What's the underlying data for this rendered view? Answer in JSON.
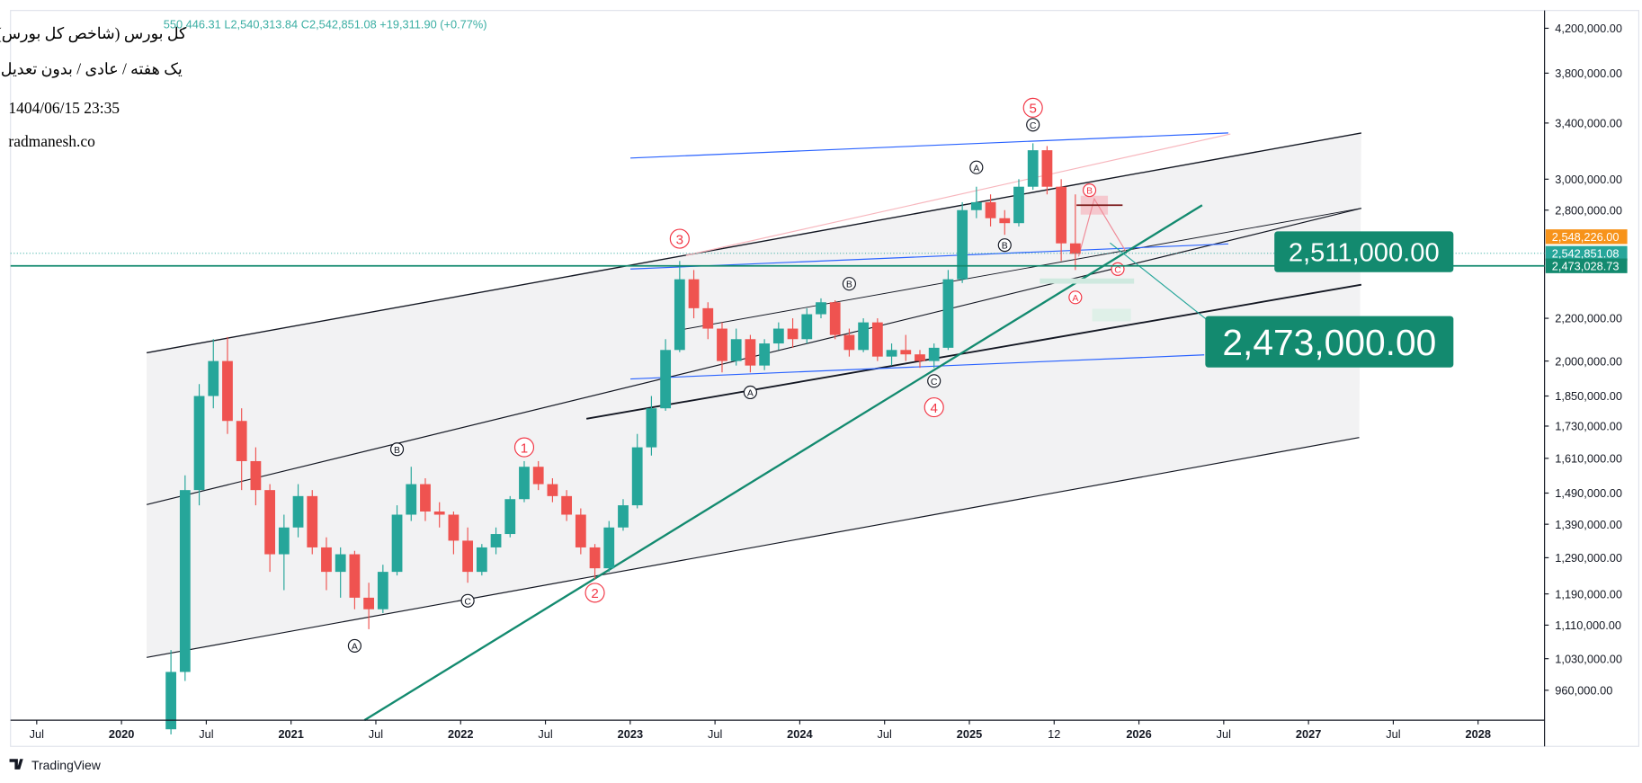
{
  "header": {
    "title": "کل بورس (شاخص کل بورس)",
    "subtitle": "یک هفته / عادی / بدون تعدیل",
    "datetime": "1404/06/15 23:35",
    "site": "radmanesh.co",
    "ohlc": "550,446.31 L2,540,313.84 C2,542,851.08 +19,311.90 (+0.77%)"
  },
  "chart_data": {
    "type": "candlestick",
    "x": [
      "2020-04",
      "2020-05",
      "2020-06",
      "2020-07",
      "2020-08",
      "2020-09",
      "2020-10",
      "2020-11",
      "2020-12",
      "2021-01",
      "2021-02",
      "2021-03",
      "2021-04",
      "2021-05",
      "2021-06",
      "2021-07",
      "2021-08",
      "2021-09",
      "2021-10",
      "2021-11",
      "2021-12",
      "2022-01",
      "2022-02",
      "2022-03",
      "2022-04",
      "2022-05",
      "2022-06",
      "2022-07",
      "2022-08",
      "2022-09",
      "2022-10",
      "2022-11",
      "2022-12",
      "2023-01",
      "2023-02",
      "2023-03",
      "2023-04",
      "2023-05",
      "2023-06",
      "2023-07",
      "2023-08",
      "2023-09",
      "2023-10",
      "2023-11",
      "2023-12",
      "2024-01",
      "2024-02",
      "2024-03",
      "2024-04",
      "2024-05",
      "2024-06",
      "2024-07",
      "2024-08",
      "2024-09",
      "2024-10",
      "2024-11",
      "2024-12",
      "2025-01",
      "2025-02",
      "2025-03",
      "2025-04",
      "2025-05",
      "2025-06",
      "2025-07",
      "2025-08"
    ],
    "open": [
      880000,
      1000000,
      1500000,
      1850000,
      2000000,
      1750000,
      1600000,
      1500000,
      1300000,
      1380000,
      1480000,
      1320000,
      1250000,
      1300000,
      1180000,
      1150000,
      1250000,
      1420000,
      1520000,
      1430000,
      1420000,
      1340000,
      1250000,
      1320000,
      1360000,
      1470000,
      1580000,
      1520000,
      1480000,
      1420000,
      1320000,
      1260000,
      1380000,
      1450000,
      1650000,
      1800000,
      2050000,
      2400000,
      2250000,
      2150000,
      2000000,
      2100000,
      1980000,
      2080000,
      2150000,
      2100000,
      2220000,
      2280000,
      2120000,
      2050000,
      2180000,
      2020000,
      2050000,
      2030000,
      2000000,
      2060000,
      2400000,
      2800000,
      2850000,
      2750000,
      2720000,
      2950000,
      3200000,
      2950000,
      2600000
    ],
    "high": [
      1050000,
      1550000,
      1900000,
      2100000,
      2110000,
      1800000,
      1650000,
      1520000,
      1420000,
      1520000,
      1500000,
      1350000,
      1320000,
      1310000,
      1220000,
      1270000,
      1450000,
      1580000,
      1540000,
      1460000,
      1430000,
      1380000,
      1330000,
      1380000,
      1480000,
      1600000,
      1600000,
      1540000,
      1500000,
      1440000,
      1330000,
      1400000,
      1470000,
      1700000,
      1850000,
      2100000,
      2500000,
      2450000,
      2280000,
      2180000,
      2150000,
      2120000,
      2100000,
      2180000,
      2200000,
      2250000,
      2300000,
      2290000,
      2150000,
      2200000,
      2200000,
      2080000,
      2120000,
      2050000,
      2080000,
      2450000,
      2850000,
      2950000,
      2900000,
      2800000,
      3000000,
      3250000,
      3230000,
      3000000,
      2900000
    ],
    "low": [
      870000,
      980000,
      1450000,
      1800000,
      1700000,
      1500000,
      1450000,
      1250000,
      1200000,
      1350000,
      1300000,
      1200000,
      1180000,
      1150000,
      1100000,
      1140000,
      1240000,
      1400000,
      1400000,
      1380000,
      1300000,
      1220000,
      1240000,
      1300000,
      1350000,
      1460000,
      1500000,
      1460000,
      1400000,
      1300000,
      1230000,
      1250000,
      1370000,
      1440000,
      1620000,
      1790000,
      2040000,
      2200000,
      2100000,
      1950000,
      1980000,
      1950000,
      1960000,
      2050000,
      2060000,
      2080000,
      2200000,
      2100000,
      2020000,
      2040000,
      2000000,
      1980000,
      2000000,
      1970000,
      1970000,
      2050000,
      2380000,
      2750000,
      2700000,
      2650000,
      2700000,
      2930000,
      2900000,
      2500000,
      2450000
    ],
    "close": [
      1000000,
      1500000,
      1850000,
      2000000,
      1750000,
      1600000,
      1500000,
      1300000,
      1380000,
      1480000,
      1320000,
      1250000,
      1300000,
      1180000,
      1150000,
      1250000,
      1420000,
      1520000,
      1430000,
      1420000,
      1340000,
      1250000,
      1320000,
      1360000,
      1470000,
      1580000,
      1520000,
      1480000,
      1420000,
      1320000,
      1260000,
      1380000,
      1450000,
      1650000,
      1800000,
      2050000,
      2400000,
      2250000,
      2150000,
      2000000,
      2100000,
      1980000,
      2080000,
      2150000,
      2100000,
      2220000,
      2280000,
      2120000,
      2050000,
      2180000,
      2020000,
      2050000,
      2030000,
      2000000,
      2060000,
      2400000,
      2800000,
      2850000,
      2750000,
      2720000,
      2950000,
      3200000,
      2950000,
      2600000,
      2540000
    ],
    "up_color": "#26a69a",
    "down_color": "#ef5350",
    "xlim": [
      "2019-05",
      "2028-06"
    ],
    "xticks": [
      {
        "value": "2019-07",
        "label": "Jul"
      },
      {
        "value": "2020-01",
        "label": "2020"
      },
      {
        "value": "2020-07",
        "label": "Jul"
      },
      {
        "value": "2021-01",
        "label": "2021"
      },
      {
        "value": "2021-07",
        "label": "Jul"
      },
      {
        "value": "2022-01",
        "label": "2022"
      },
      {
        "value": "2022-07",
        "label": "Jul"
      },
      {
        "value": "2023-01",
        "label": "2023"
      },
      {
        "value": "2023-07",
        "label": "Jul"
      },
      {
        "value": "2024-01",
        "label": "2024"
      },
      {
        "value": "2024-07",
        "label": "Jul"
      },
      {
        "value": "2025-01",
        "label": "2025"
      },
      {
        "value": "2025-07",
        "label": "12"
      },
      {
        "value": "2026-01",
        "label": "2026"
      },
      {
        "value": "2026-07",
        "label": "Jul"
      },
      {
        "value": "2027-01",
        "label": "2027"
      },
      {
        "value": "2027-07",
        "label": "Jul"
      },
      {
        "value": "2028-01",
        "label": "2028"
      }
    ],
    "ylim": [
      898000,
      4370000
    ],
    "log_scale": true,
    "yticks": [
      {
        "value": 4200000,
        "label": "4,200,000.00"
      },
      {
        "value": 3800000,
        "label": "3,800,000.00"
      },
      {
        "value": 3400000,
        "label": "3,400,000.00"
      },
      {
        "value": 3000000,
        "label": "3,000,000.00"
      },
      {
        "value": 2800000,
        "label": "2,800,000.00"
      },
      {
        "value": 2200000,
        "label": "2,200,000.00"
      },
      {
        "value": 2000000,
        "label": "2,000,000.00"
      },
      {
        "value": 1850000,
        "label": "1,850,000.00"
      },
      {
        "value": 1730000,
        "label": "1,730,000.00"
      },
      {
        "value": 1610000,
        "label": "1,610,000.00"
      },
      {
        "value": 1490000,
        "label": "1,490,000.00"
      },
      {
        "value": 1390000,
        "label": "1,390,000.00"
      },
      {
        "value": 1290000,
        "label": "1,290,000.00"
      },
      {
        "value": 1190000,
        "label": "1,190,000.00"
      },
      {
        "value": 1110000,
        "label": "1,110,000.00"
      },
      {
        "value": 1030000,
        "label": "1,030,000.00"
      },
      {
        "value": 960000,
        "label": "960,000.00"
      }
    ],
    "price_labels": [
      {
        "value": 2548226,
        "label": "2,548,226.00",
        "color": "#f7931a"
      },
      {
        "value": 2542851.08,
        "label": "2,542,851.08",
        "color": "#26a69a"
      },
      {
        "value": 2473028.73,
        "label": "2,473,028.73",
        "color": "#138a6f"
      }
    ],
    "annotations": [
      {
        "text": "1",
        "x": "2022-05",
        "y": 1650000,
        "color": "#f23645"
      },
      {
        "text": "2",
        "x": "2022-10",
        "y": 1193000,
        "color": "#f23645"
      },
      {
        "text": "3",
        "x": "2023-04",
        "y": 2627000,
        "color": "#f23645"
      },
      {
        "text": "4",
        "x": "2024-10",
        "y": 1804000,
        "color": "#f23645"
      },
      {
        "text": "5",
        "x": "2025-05",
        "y": 3518000,
        "color": "#f23645"
      },
      {
        "text": "A",
        "x": "2021-05",
        "y": 1060000,
        "color": "#131722"
      },
      {
        "text": "B",
        "x": "2021-08",
        "y": 1643000,
        "color": "#131722"
      },
      {
        "text": "C",
        "x": "2022-01",
        "y": 1172000,
        "color": "#131722"
      },
      {
        "text": "A",
        "x": "2023-09",
        "y": 1865000,
        "color": "#131722"
      },
      {
        "text": "B",
        "x": "2024-04",
        "y": 2376000,
        "color": "#131722"
      },
      {
        "text": "C",
        "x": "2024-10",
        "y": 1913000,
        "color": "#131722"
      },
      {
        "text": "A",
        "x": "2025-01",
        "y": 3080000,
        "color": "#131722"
      },
      {
        "text": "B",
        "x": "2025-03",
        "y": 2590000,
        "color": "#131722"
      },
      {
        "text": "C",
        "x": "2025-05",
        "y": 3387000,
        "color": "#131722"
      },
      {
        "text": "A",
        "x": "2025-08",
        "y": 2305000,
        "color": "#f23645"
      },
      {
        "text": "B",
        "x": "2025-09",
        "y": 2927000,
        "color": "#f23645"
      },
      {
        "text": "C",
        "x": "2025-11",
        "y": 2455000,
        "color": "#f23645"
      }
    ],
    "callouts": [
      {
        "text": "2,511,000.00"
      },
      {
        "text": "2,473,000.00"
      }
    ]
  },
  "footer": {
    "brand": "TradingView"
  }
}
